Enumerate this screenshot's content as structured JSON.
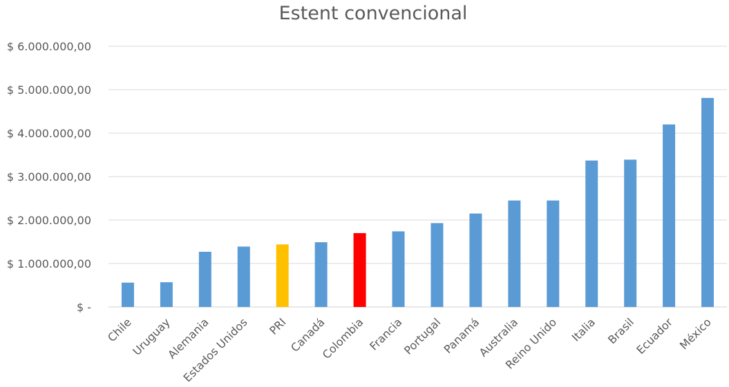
{
  "chart_data": {
    "type": "bar",
    "title": "Estent convencional",
    "xlabel": "",
    "ylabel": "",
    "categories": [
      "Chile",
      "Uruguay",
      "Alemania",
      "Estados Unidos",
      "PRI",
      "Canadá",
      "Colombia",
      "Francia",
      "Portugal",
      "Panamá",
      "Australia",
      "Reino Unido",
      "Italia",
      "Brasil",
      "Ecuador",
      "México"
    ],
    "values": [
      560000,
      570000,
      1270000,
      1390000,
      1440000,
      1490000,
      1700000,
      1740000,
      1930000,
      2150000,
      2450000,
      2450000,
      3370000,
      3390000,
      4200000,
      4810000
    ],
    "bar_colors": [
      "#5B9BD5",
      "#5B9BD5",
      "#5B9BD5",
      "#5B9BD5",
      "#FFC000",
      "#5B9BD5",
      "#FF0000",
      "#5B9BD5",
      "#5B9BD5",
      "#5B9BD5",
      "#5B9BD5",
      "#5B9BD5",
      "#5B9BD5",
      "#5B9BD5",
      "#5B9BD5",
      "#5B9BD5"
    ],
    "ylim": [
      0,
      6000000
    ],
    "yticks": [
      0,
      1000000,
      2000000,
      3000000,
      4000000,
      5000000,
      6000000
    ],
    "ytick_labels": [
      "$ -",
      "$ 1.000.000,00",
      "$ 2.000.000,00",
      "$ 3.000.000,00",
      "$ 4.000.000,00",
      "$ 5.000.000,00",
      "$ 6.000.000,00"
    ],
    "grid": true,
    "legend": "none"
  }
}
